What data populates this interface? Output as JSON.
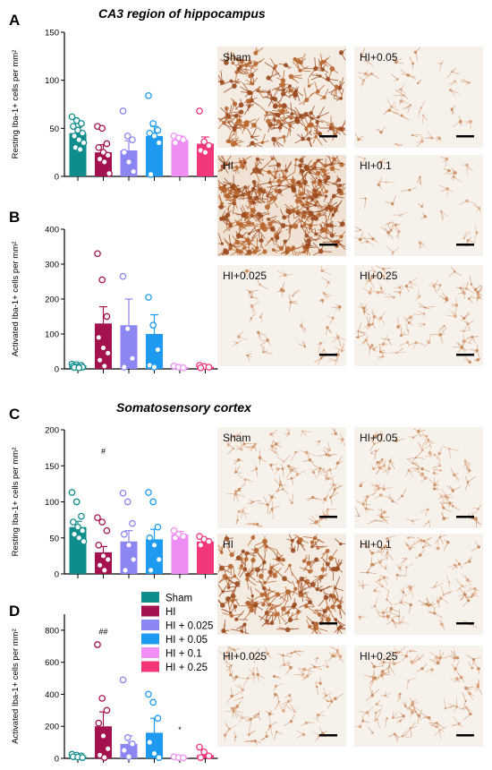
{
  "colors": {
    "Sham": "#0f8c8c",
    "HI": "#a3124f",
    "HI + 0.025": "#8c86f2",
    "HI + 0.05": "#1e9bf0",
    "HI + 0.1": "#ee8ef2",
    "HI + 0.25": "#f2367a"
  },
  "sections": {
    "top": "CA3 region of hippocampus",
    "bottom": "Somatosensory cortex"
  },
  "legend": [
    "Sham",
    "HI",
    "HI + 0.025",
    "HI + 0.05",
    "HI + 0.1",
    "HI + 0.25"
  ],
  "micrographs": {
    "top": [
      {
        "label": "Sham",
        "density": "high"
      },
      {
        "label": "HI+0.05",
        "density": "low"
      },
      {
        "label": "HI",
        "density": "very-high"
      },
      {
        "label": "HI+0.1",
        "density": "low"
      },
      {
        "label": "HI+0.025",
        "density": "low"
      },
      {
        "label": "HI+0.25",
        "density": "medium"
      }
    ],
    "bottom": [
      {
        "label": "Sham",
        "density": "medium"
      },
      {
        "label": "HI+0.05",
        "density": "medium"
      },
      {
        "label": "HI",
        "density": "high"
      },
      {
        "label": "HI+0.1",
        "density": "medium"
      },
      {
        "label": "HI+0.025",
        "density": "medium"
      },
      {
        "label": "HI+0.25",
        "density": "medium"
      }
    ]
  },
  "chart_data": [
    {
      "panel": "A",
      "type": "bar",
      "ylabel": "Resting Iba-1+ cells per mm²",
      "ylim": [
        0,
        150
      ],
      "yticks": [
        0,
        50,
        100,
        150
      ],
      "categories": [
        "Sham",
        "HI",
        "HI + 0.025",
        "HI + 0.05",
        "HI + 0.1",
        "HI + 0.25"
      ],
      "values": [
        45,
        25,
        27,
        42,
        38,
        34
      ],
      "errors": [
        6,
        8,
        10,
        10,
        4,
        7
      ],
      "points": [
        [
          62,
          58,
          55,
          52,
          48,
          45,
          42,
          38,
          35,
          30,
          28
        ],
        [
          52,
          50,
          34,
          30,
          25,
          22,
          18,
          15,
          3
        ],
        [
          68,
          42,
          38,
          25,
          15,
          5
        ],
        [
          84,
          55,
          48,
          45,
          42,
          35,
          2
        ],
        [
          42,
          40,
          38,
          35
        ],
        [
          68,
          36,
          32,
          27,
          25
        ]
      ],
      "annotations": []
    },
    {
      "panel": "B",
      "type": "bar",
      "ylabel": "Activated Iba-1+ cells per mm²",
      "ylim": [
        0,
        400
      ],
      "yticks": [
        0,
        100,
        200,
        300,
        400
      ],
      "categories": [
        "Sham",
        "HI",
        "HI + 0.025",
        "HI + 0.05",
        "HI + 0.1",
        "HI + 0.25"
      ],
      "values": [
        10,
        130,
        125,
        100,
        5,
        6
      ],
      "errors": [
        3,
        48,
        75,
        55,
        2,
        3
      ],
      "points": [
        [
          14,
          12,
          10,
          8,
          6,
          5,
          4,
          3
        ],
        [
          330,
          255,
          150,
          90,
          60,
          45,
          25,
          8
        ],
        [
          265,
          115,
          30,
          5
        ],
        [
          205,
          125,
          55,
          10,
          5
        ],
        [
          8,
          5,
          3
        ],
        [
          10,
          7,
          5,
          3
        ]
      ],
      "annotations": []
    },
    {
      "panel": "C",
      "type": "bar",
      "ylabel": "Resting Iba-1+ cells per mm²",
      "ylim": [
        0,
        200
      ],
      "yticks": [
        0,
        50,
        100,
        150,
        200
      ],
      "categories": [
        "Sham",
        "HI",
        "HI + 0.025",
        "HI + 0.05",
        "HI + 0.1",
        "HI + 0.25"
      ],
      "values": [
        65,
        30,
        45,
        48,
        55,
        45
      ],
      "errors": [
        8,
        8,
        15,
        14,
        4,
        4
      ],
      "points": [
        [
          113,
          100,
          80,
          72,
          65,
          60,
          55,
          50,
          45
        ],
        [
          78,
          72,
          60,
          40,
          25,
          20,
          12,
          5
        ],
        [
          112,
          100,
          70,
          55,
          40,
          20,
          5
        ],
        [
          113,
          100,
          65,
          50,
          40,
          20,
          5
        ],
        [
          60,
          55,
          52,
          50
        ],
        [
          52,
          48,
          45,
          40
        ]
      ],
      "annotations": [
        {
          "category": "HI",
          "text": "#",
          "value": 170
        }
      ]
    },
    {
      "panel": "D",
      "type": "bar",
      "ylabel": "Activated Iba-1+ cells per mm²",
      "ylim": [
        0,
        900
      ],
      "yticks": [
        0,
        200,
        400,
        600,
        800
      ],
      "categories": [
        "Sham",
        "HI",
        "HI + 0.025",
        "HI + 0.05",
        "HI + 0.1",
        "HI + 0.25"
      ],
      "values": [
        15,
        200,
        90,
        160,
        5,
        20
      ],
      "errors": [
        5,
        90,
        50,
        90,
        2,
        12
      ],
      "points": [
        [
          25,
          20,
          15,
          10,
          8,
          5
        ],
        [
          710,
          375,
          300,
          220,
          140,
          60,
          20,
          5
        ],
        [
          490,
          130,
          90,
          50,
          10
        ],
        [
          400,
          350,
          250,
          100,
          30,
          5
        ],
        [
          10,
          5,
          3
        ],
        [
          70,
          40,
          15,
          5
        ]
      ],
      "annotations": [
        {
          "category": "HI",
          "text": "##",
          "value": 790
        },
        {
          "category": "HI + 0.1",
          "text": "*",
          "value": 180
        }
      ]
    }
  ]
}
